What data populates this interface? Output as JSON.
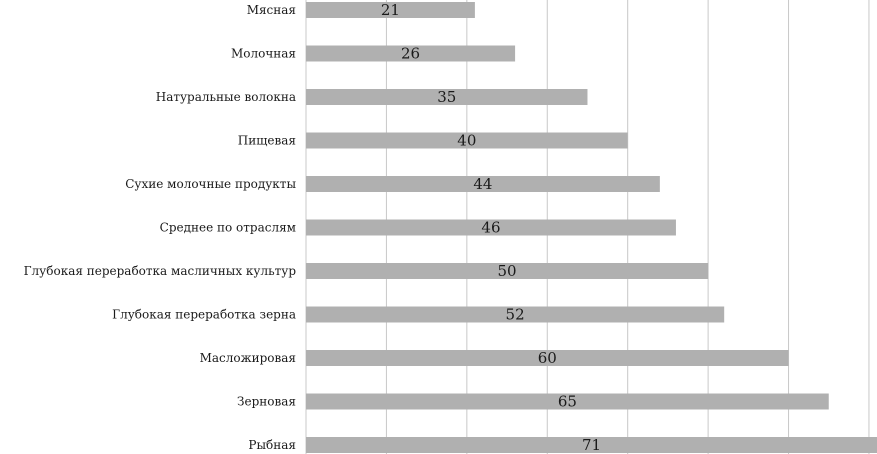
{
  "chart_data": {
    "type": "bar",
    "orientation": "horizontal",
    "categories": [
      "Мясная",
      "Молочная",
      "Натуральные волокна",
      "Пищевая",
      "Сухие молочные продукты",
      "Среднее по отраслям",
      "Глубокая переработка масличных культур",
      "Глубокая переработка зерна",
      "Масложировая",
      "Зерновая",
      "Рыбная"
    ],
    "values": [
      21,
      26,
      35,
      40,
      44,
      46,
      50,
      52,
      60,
      65,
      71
    ],
    "xlim": [
      0,
      71
    ],
    "grid": true,
    "grid_step": 10,
    "bar_color": "#b0b0b0",
    "grid_color": "#c8c8c8",
    "title": "",
    "xlabel": "",
    "ylabel": ""
  }
}
